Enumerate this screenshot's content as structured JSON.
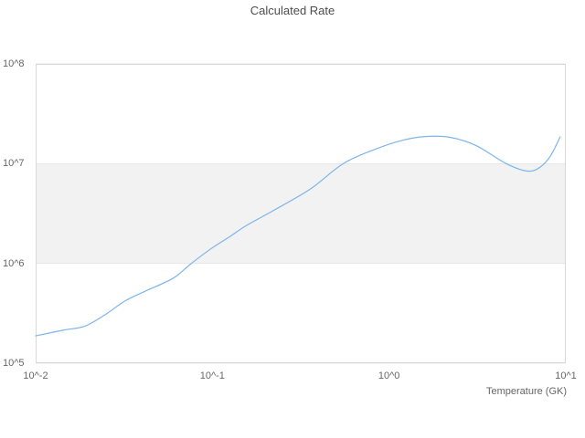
{
  "chart_data": {
    "type": "line",
    "title": "Calculated Rate",
    "xlabel": "Temperature (GK)",
    "ylabel": "",
    "x_scale": "log",
    "y_scale": "log",
    "xlim": [
      0.01,
      10
    ],
    "ylim": [
      100000,
      100000000
    ],
    "grid": "horizontal-only",
    "legend": "none",
    "x_ticks": [
      {
        "value": 0.01,
        "label": "10^-2"
      },
      {
        "value": 0.1,
        "label": "10^-1"
      },
      {
        "value": 1,
        "label": "10^0"
      },
      {
        "value": 10,
        "label": "10^1"
      }
    ],
    "y_ticks": [
      {
        "value": 100000,
        "label": "10^5"
      },
      {
        "value": 1000000,
        "label": "10^6"
      },
      {
        "value": 10000000,
        "label": "10^7"
      },
      {
        "value": 100000000,
        "label": "10^8"
      }
    ],
    "plot_band": {
      "from": 1000000,
      "to": 10000000
    },
    "colors": {
      "line": "#7cb5ec",
      "grid": "#e6e6e6",
      "border": "#d9d9d9",
      "band": "#f2f2f2",
      "tick_text": "#666666",
      "title_text": "#4d4d4d"
    },
    "series": [
      {
        "name": "Calculated Rate",
        "x": [
          0.01,
          0.0145,
          0.019,
          0.025,
          0.032,
          0.042,
          0.06,
          0.075,
          0.098,
          0.124,
          0.156,
          0.225,
          0.36,
          0.55,
          0.84,
          1.2,
          1.6,
          2.2,
          3.1,
          4.6,
          6.1,
          7.2,
          8.2,
          9.3
        ],
        "y": [
          188000,
          215000,
          235000,
          310000,
          420000,
          530000,
          710000,
          980000,
          1400000,
          1830000,
          2400000,
          3440000,
          5600000,
          10000000,
          14000000,
          17200000,
          18700000,
          18400000,
          15200000,
          10000000,
          8400000,
          9300000,
          12000000,
          18600000
        ]
      }
    ]
  }
}
